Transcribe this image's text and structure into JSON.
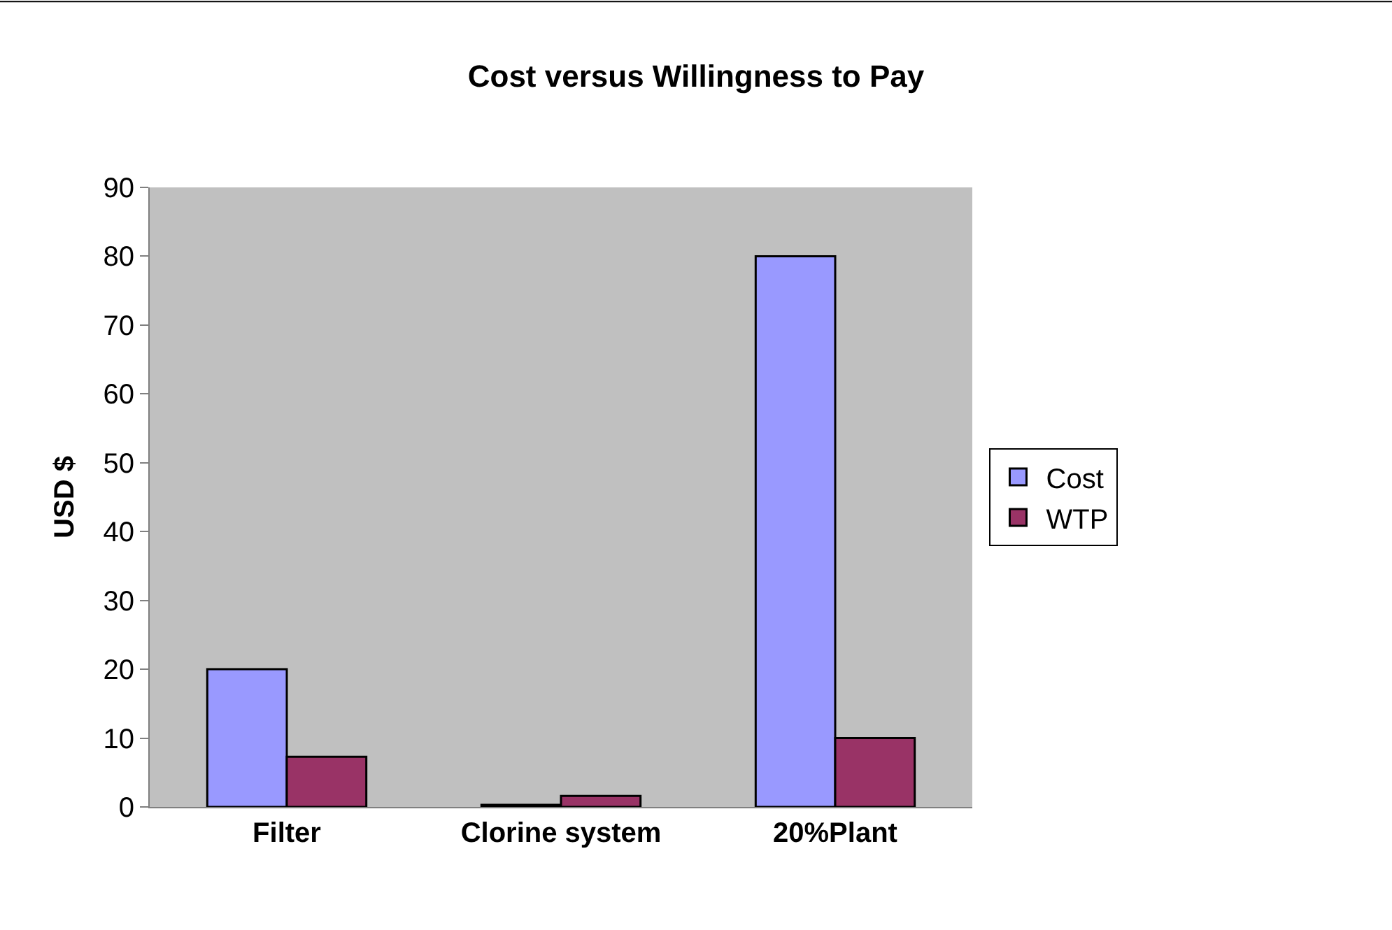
{
  "chart_data": {
    "type": "bar",
    "title": "Cost versus Willingness to Pay",
    "ylabel": "USD $",
    "categories": [
      "Filter",
      "Clorine system",
      "20%Plant"
    ],
    "series": [
      {
        "name": "Cost",
        "color": "#9999ff",
        "values": [
          20,
          0.3,
          80
        ]
      },
      {
        "name": "WTP",
        "color": "#993366",
        "values": [
          7.3,
          1.6,
          10
        ]
      }
    ],
    "ylim": [
      0,
      90
    ],
    "yticks": [
      0,
      10,
      20,
      30,
      40,
      50,
      60,
      70,
      80,
      90
    ],
    "grid": false,
    "legend": "right"
  }
}
